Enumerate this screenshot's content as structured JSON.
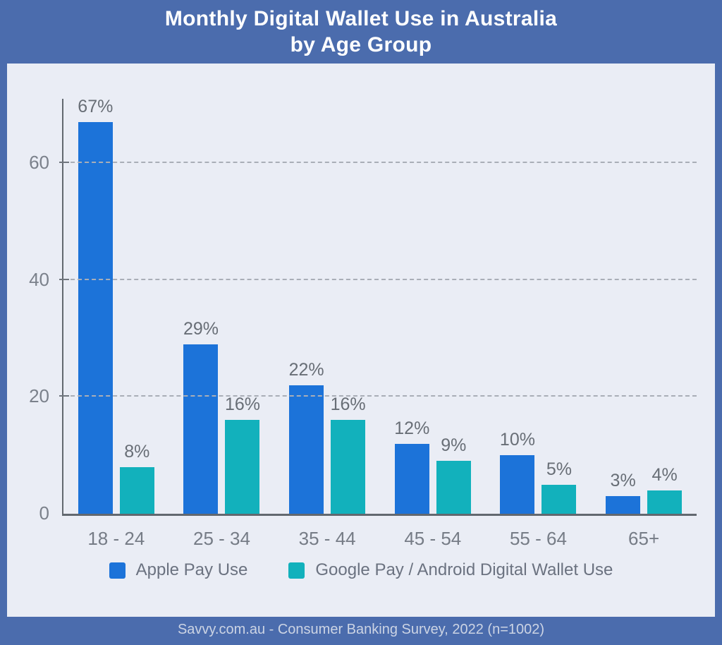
{
  "header": {
    "title_line1": "Monthly Digital Wallet Use in Australia",
    "title_line2": "by Age Group"
  },
  "chart_data": {
    "type": "bar",
    "title": "Monthly Digital Wallet Use in Australia by Age Group",
    "categories": [
      "18 - 24",
      "25 - 34",
      "35 - 44",
      "45 - 54",
      "55 - 64",
      "65+"
    ],
    "series": [
      {
        "name": "Apple Pay Use",
        "color": "#1c73d9",
        "values": [
          67,
          29,
          22,
          12,
          10,
          3
        ]
      },
      {
        "name": "Google Pay / Android Digital Wallet Use",
        "color": "#12b1bc",
        "values": [
          8,
          16,
          16,
          9,
          5,
          4
        ]
      }
    ],
    "value_suffix": "%",
    "xlabel": "",
    "ylabel": "",
    "yticks": [
      0,
      20,
      40,
      60
    ],
    "ylim": [
      0,
      71
    ],
    "grid": "horizontal-dashed",
    "legend_position": "bottom"
  },
  "footer": {
    "source": "Savvy.com.au - Consumer Banking Survey, 2022 (n=1002)"
  },
  "colors": {
    "background": "#4b6cad",
    "panel": "#eaedf5",
    "apple_pay": "#1c73d9",
    "google_pay": "#12b1bc",
    "axis": "#62686f",
    "grid": "#a9aeb7",
    "label_text": "#686e76",
    "title_text": "#ffffff",
    "source_text": "#ccd4e4"
  }
}
